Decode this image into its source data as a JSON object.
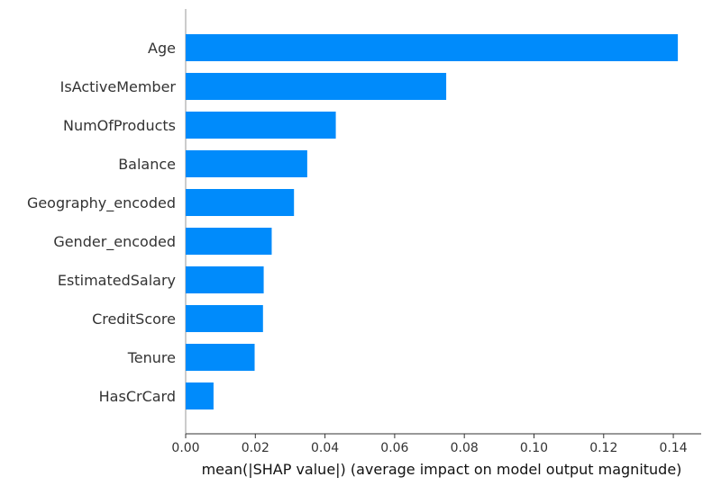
{
  "chart_data": {
    "type": "bar",
    "orientation": "horizontal",
    "title": "",
    "xlabel": "mean(|SHAP value|) (average impact on model output magnitude)",
    "ylabel": "",
    "xlim": [
      0,
      0.148
    ],
    "x_ticks": [
      0.0,
      0.02,
      0.04,
      0.06,
      0.08,
      0.1,
      0.12,
      0.14
    ],
    "x_tick_labels": [
      "0.00",
      "0.02",
      "0.04",
      "0.06",
      "0.08",
      "0.10",
      "0.12",
      "0.14"
    ],
    "grid": false,
    "legend": "none",
    "bar_color": "#008bfb",
    "categories": [
      "Age",
      "IsActiveMember",
      "NumOfProducts",
      "Balance",
      "Geography_encoded",
      "Gender_encoded",
      "EstimatedSalary",
      "CreditScore",
      "Tenure",
      "HasCrCard"
    ],
    "values": [
      0.1413,
      0.0748,
      0.0431,
      0.0349,
      0.0311,
      0.0247,
      0.0224,
      0.0222,
      0.0198,
      0.008
    ]
  }
}
